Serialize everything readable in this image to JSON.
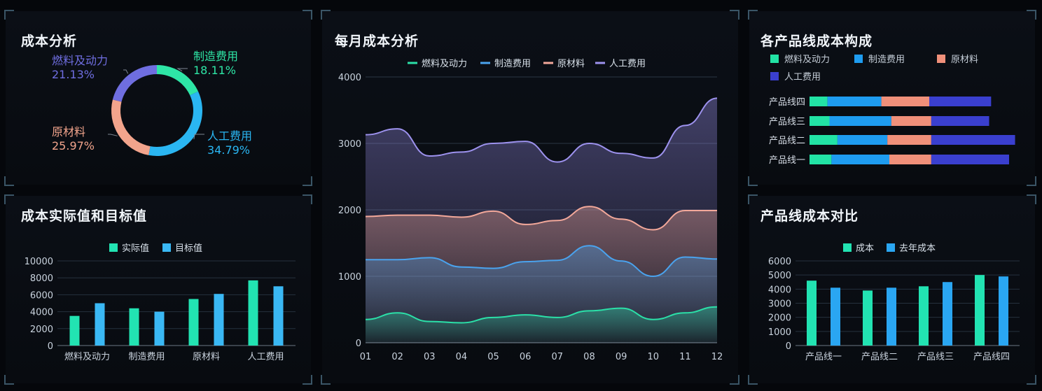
{
  "panels": {
    "cost_analysis": {
      "title": "成本分析"
    },
    "monthly": {
      "title": "每月成本分析"
    },
    "composition": {
      "title": "各产品线成本构成"
    },
    "actual_target": {
      "title": "成本实际值和目标值"
    },
    "line_compare": {
      "title": "产品线成本对比"
    }
  },
  "colors": {
    "fuel": "#22e3a5",
    "manufacturing": "#1e9cf0",
    "raw": "#f0907a",
    "labor": "#7a7ae8",
    "labor_bar": "#3a3fcf",
    "actual": "#22e3b2",
    "target": "#3ab8f4",
    "cost": "#22e3b2",
    "last_year": "#2aa6f2"
  },
  "chart_data": [
    {
      "id": "donut",
      "type": "pie",
      "title": "成本分析",
      "slices": [
        {
          "name": "制造费用",
          "pct_label": "18.11%",
          "value": 18.11,
          "color": "#2ee6a6"
        },
        {
          "name": "人工费用",
          "pct_label": "34.79%",
          "value": 34.79,
          "color": "#2ab6f2"
        },
        {
          "name": "原材料",
          "pct_label": "25.97%",
          "value": 25.97,
          "color": "#f2a48c"
        },
        {
          "name": "燃料及动力",
          "pct_label": "21.13%",
          "value": 21.13,
          "color": "#6f6ee0"
        }
      ]
    },
    {
      "id": "monthly",
      "type": "area",
      "title": "每月成本分析",
      "categories": [
        "01",
        "02",
        "03",
        "04",
        "05",
        "06",
        "07",
        "08",
        "09",
        "10",
        "11",
        "12"
      ],
      "ylim": [
        0,
        4000
      ],
      "yticks": [
        0,
        1000,
        2000,
        3000,
        4000
      ],
      "legend": [
        "燃料及动力",
        "制造费用",
        "原材料",
        "人工费用"
      ],
      "series": [
        {
          "name": "燃料及动力",
          "color": "#2be0a8",
          "values": [
            350,
            450,
            320,
            300,
            380,
            420,
            380,
            480,
            520,
            350,
            450,
            540
          ]
        },
        {
          "name": "制造费用",
          "color": "#4aa3ee",
          "values": [
            1250,
            1250,
            1280,
            1140,
            1120,
            1220,
            1240,
            1460,
            1230,
            1000,
            1290,
            1260
          ]
        },
        {
          "name": "原材料",
          "color": "#f3a89a",
          "values": [
            1900,
            1920,
            1920,
            1890,
            1980,
            1780,
            1840,
            2050,
            1860,
            1700,
            1990,
            1990
          ]
        },
        {
          "name": "人工费用",
          "color": "#9d92ee",
          "values": [
            3130,
            3220,
            2810,
            2870,
            3000,
            3030,
            2720,
            3000,
            2850,
            2780,
            3270,
            3680
          ]
        }
      ]
    },
    {
      "id": "composition",
      "type": "bar",
      "title": "各产品线成本构成",
      "legend": [
        "燃料及动力",
        "制造费用",
        "原材料",
        "人工费用"
      ],
      "categories": [
        "产品线四",
        "产品线三",
        "产品线二",
        "产品线一"
      ],
      "series": [
        {
          "name": "燃料及动力",
          "values": [
            9,
            10,
            14,
            11
          ]
        },
        {
          "name": "制造费用",
          "values": [
            27,
            31,
            25,
            29
          ]
        },
        {
          "name": "原材料",
          "values": [
            24,
            20,
            22,
            21
          ]
        },
        {
          "name": "人工费用",
          "values": [
            31,
            29,
            42,
            39
          ]
        }
      ]
    },
    {
      "id": "actual_target",
      "type": "bar",
      "title": "成本实际值和目标值",
      "categories": [
        "燃料及动力",
        "制造费用",
        "原材料",
        "人工费用"
      ],
      "ylim": [
        0,
        10000
      ],
      "yticks": [
        0,
        2000,
        4000,
        6000,
        8000,
        10000
      ],
      "series": [
        {
          "name": "实际值",
          "values": [
            3500,
            4400,
            5500,
            7700
          ]
        },
        {
          "name": "目标值",
          "values": [
            5000,
            4000,
            6100,
            7000
          ]
        }
      ]
    },
    {
      "id": "line_compare",
      "type": "bar",
      "title": "产品线成本对比",
      "categories": [
        "产品线一",
        "产品线二",
        "产品线三",
        "产品线四"
      ],
      "ylim": [
        0,
        6000
      ],
      "yticks": [
        0,
        1000,
        2000,
        3000,
        4000,
        5000,
        6000
      ],
      "series": [
        {
          "name": "成本",
          "values": [
            4600,
            3900,
            4200,
            5000
          ]
        },
        {
          "name": "去年成本",
          "values": [
            4100,
            4100,
            4500,
            4900
          ]
        }
      ]
    }
  ]
}
